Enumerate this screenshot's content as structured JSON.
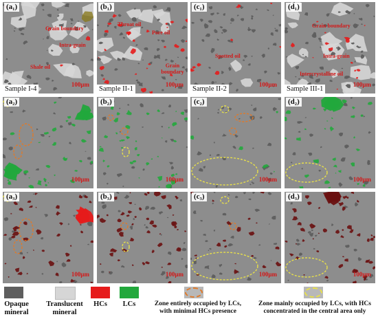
{
  "panels": [
    {
      "label": "(a₁)",
      "sample": "Sample I-4",
      "scale": "100μm",
      "annotations": [
        "Grain boundary",
        "Intra-grain",
        "Shale oil"
      ]
    },
    {
      "label": "(b₁)",
      "sample": "Sample II-1",
      "scale": "100μm",
      "annotations": [
        "Throat oil",
        "Pore oil",
        "Grain boundary"
      ]
    },
    {
      "label": "(c₁)",
      "sample": "Sample II-2",
      "scale": "100μm",
      "annotations": [
        "Spotted oil"
      ]
    },
    {
      "label": "(d₁)",
      "sample": "Sample III-1",
      "scale": "100μm",
      "annotations": [
        "Grain boundary",
        "Intra-grain",
        "Intercrystalline oil"
      ]
    },
    {
      "label": "(a₂)",
      "scale": "100μm"
    },
    {
      "label": "(b₂)",
      "scale": "100μm"
    },
    {
      "label": "(c₂)",
      "scale": "100μm"
    },
    {
      "label": "(d₂)",
      "scale": "100μm"
    },
    {
      "label": "(a₃)",
      "scale": "100μm"
    },
    {
      "label": "(b₃)",
      "scale": "100μm"
    },
    {
      "label": "(c₃)",
      "scale": "100μm"
    },
    {
      "label": "(d₃)",
      "scale": "100μm"
    }
  ],
  "legend": {
    "opaque": "Opaque mineral",
    "translucent": "Translucent mineral",
    "hcs": "HCs",
    "lcs": "LCs",
    "zone_lcs": "Zone entirely occupied by LCs, with minimal HCs presence",
    "zone_hcs": "Zone mainly occupied by LCs, with HCs concentrated in the central area only"
  },
  "colors": {
    "matrix": "#8d8d8d",
    "opaque": "#5e5e5e",
    "translucent": "#d6d6d6",
    "hcs": "#e61b1b",
    "lcs": "#22a83c",
    "dark_red": "#6a1010",
    "annotation": "#d21818",
    "zone_lcs_ring": "#e07a2a",
    "zone_hcs_ring": "#e8e04a"
  }
}
